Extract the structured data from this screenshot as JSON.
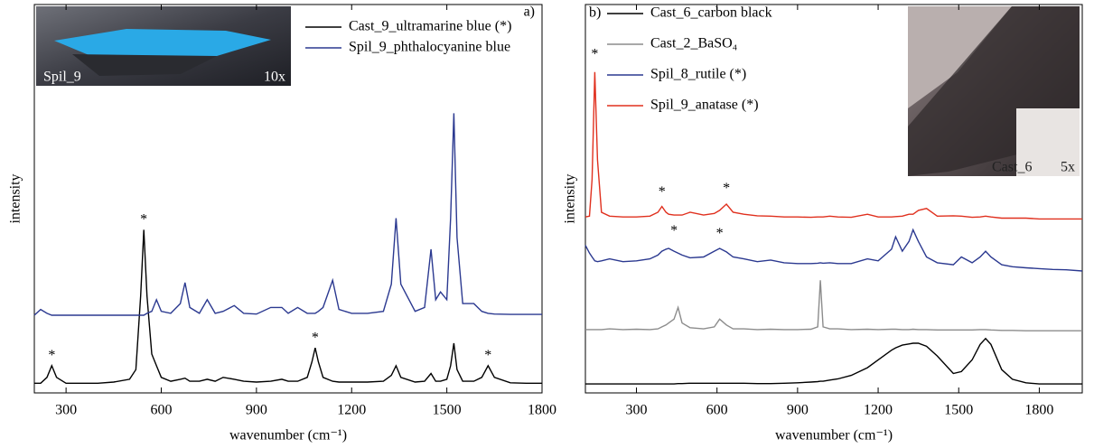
{
  "chart_data": [
    {
      "type": "line",
      "panel_label": "a)",
      "xlabel": "wavenumber (cm⁻¹)",
      "ylabel": "intensity",
      "inset_labels": [
        "Spil_9",
        "10x"
      ],
      "legend": "top-right",
      "xlim": [
        200,
        1800
      ],
      "xticks": [
        300,
        600,
        900,
        1200,
        1500,
        1800
      ],
      "ylim": [
        0,
        100
      ],
      "x": [
        200,
        220,
        240,
        255,
        270,
        300,
        350,
        400,
        450,
        500,
        520,
        535,
        545,
        555,
        570,
        585,
        600,
        630,
        660,
        675,
        690,
        720,
        745,
        770,
        795,
        830,
        860,
        900,
        945,
        980,
        1000,
        1030,
        1060,
        1075,
        1085,
        1095,
        1110,
        1140,
        1160,
        1200,
        1250,
        1300,
        1325,
        1340,
        1355,
        1400,
        1430,
        1450,
        1465,
        1480,
        1500,
        1512,
        1522,
        1532,
        1550,
        1585,
        1610,
        1630,
        1650,
        1700,
        1750,
        1800
      ],
      "series": [
        {
          "name": "Cast_9_ultramarine blue (*)",
          "color": "#000000",
          "values": [
            2.5,
            2.5,
            4,
            7,
            4,
            2.5,
            2.5,
            2.5,
            2.8,
            3.5,
            6,
            25,
            42,
            25,
            10,
            7,
            4,
            3,
            3.5,
            3.8,
            3,
            3,
            3.5,
            3,
            4,
            3.5,
            3,
            2.8,
            3,
            3.5,
            3,
            3,
            4,
            8,
            11.6,
            8,
            4,
            3,
            2.8,
            2.8,
            2.8,
            3,
            4.5,
            7,
            4,
            2.8,
            3,
            5,
            3,
            3,
            3.5,
            7,
            12.8,
            6,
            3,
            3,
            4,
            7,
            4,
            2.6,
            2.5,
            2.5
          ]
        },
        {
          "name": "Spil_9_phthalocyanine blue",
          "color": "#2b3990",
          "values": [
            20,
            21.5,
            20.5,
            20,
            20,
            20,
            20,
            20,
            20,
            20,
            20,
            20,
            20,
            20.5,
            21,
            24,
            21,
            20.5,
            23,
            28.4,
            22,
            20.5,
            24,
            20.5,
            21,
            22.5,
            20.5,
            20.3,
            22,
            22,
            20.5,
            22,
            20.5,
            20.5,
            20.5,
            21,
            22,
            29,
            21.5,
            20.5,
            20.5,
            21,
            28,
            45,
            28,
            21,
            22,
            37,
            24,
            26,
            24,
            45,
            72,
            40,
            23,
            23,
            21,
            20.5,
            20.3,
            20.2,
            20.2,
            20.2
          ]
        }
      ],
      "annotations": [
        {
          "text": "*",
          "x": 255,
          "y": 9.5
        },
        {
          "text": "*",
          "x": 545,
          "y": 44.5
        },
        {
          "text": "*",
          "x": 1085,
          "y": 14
        },
        {
          "text": "*",
          "x": 1630,
          "y": 9.5
        }
      ]
    },
    {
      "type": "line",
      "panel_label": "b)",
      "xlabel": "wavenumber (cm⁻¹)",
      "ylabel": "intensity",
      "inset_labels": [
        "Cast_6",
        "5x"
      ],
      "legend": "top-left",
      "xlim": [
        110,
        1960
      ],
      "xticks": [
        300,
        600,
        900,
        1200,
        1500,
        1800
      ],
      "ylim": [
        0,
        100
      ],
      "x": [
        110,
        125,
        135,
        145,
        155,
        170,
        200,
        250,
        300,
        350,
        380,
        395,
        410,
        420,
        440,
        455,
        470,
        500,
        550,
        590,
        610,
        635,
        660,
        700,
        750,
        800,
        850,
        900,
        950,
        975,
        985,
        995,
        1020,
        1050,
        1100,
        1160,
        1200,
        1250,
        1265,
        1290,
        1315,
        1330,
        1350,
        1380,
        1420,
        1480,
        1510,
        1550,
        1580,
        1600,
        1620,
        1660,
        1700,
        1750,
        1800,
        1850,
        1900,
        1960
      ],
      "series": [
        {
          "name": "Cast_6_carbon black",
          "color": "#000000",
          "values": [
            2.3,
            2.3,
            2.3,
            2.3,
            2.3,
            2.3,
            2.3,
            2.3,
            2.3,
            2.3,
            2.3,
            2.3,
            2.3,
            2.3,
            2.3,
            2.4,
            2.4,
            2.5,
            2.5,
            2.5,
            2.5,
            2.5,
            2.5,
            2.5,
            2.4,
            2.4,
            2.5,
            2.6,
            2.8,
            2.9,
            3,
            3,
            3.3,
            3.6,
            4.5,
            6.5,
            8.5,
            11,
            11.6,
            12.3,
            12.6,
            12.8,
            12.8,
            12,
            9.5,
            5,
            5.5,
            8.5,
            12.5,
            14,
            12.5,
            6,
            3.5,
            2.6,
            2.3,
            2.3,
            2.3,
            2.3
          ]
        },
        {
          "name": "Cast_2_BaSO₄",
          "color": "#8c8c8c",
          "values": [
            16.3,
            16.3,
            16.3,
            16.3,
            16.3,
            16.3,
            16.5,
            16.3,
            16.4,
            16.3,
            16.5,
            17,
            17.5,
            18,
            19,
            22,
            18,
            16.8,
            16.5,
            17,
            19,
            17.5,
            16.5,
            16.5,
            16.3,
            16.4,
            16.3,
            16.3,
            16.4,
            17,
            29,
            17,
            16.5,
            16.5,
            16.3,
            16.4,
            16.3,
            16.4,
            16.4,
            16.3,
            16.3,
            16.4,
            16.3,
            16.3,
            16.2,
            16.2,
            16.2,
            16.2,
            16.3,
            16.3,
            16.2,
            16.1,
            16.1,
            16,
            16,
            16,
            16,
            16
          ]
        },
        {
          "name": "Spil_8_rutile (*)",
          "color": "#2b3990",
          "values": [
            38,
            36,
            35,
            34,
            33.8,
            34,
            34.5,
            33.8,
            34,
            34.5,
            35.5,
            36.5,
            37,
            37.2,
            36.5,
            36,
            35.5,
            34.8,
            35,
            36.5,
            37.2,
            36.3,
            35,
            34.5,
            33.8,
            34.2,
            33.5,
            33.3,
            33.3,
            33.4,
            33.5,
            33.4,
            33.5,
            33.3,
            33.3,
            34.5,
            34,
            37,
            40.2,
            36.5,
            39,
            42,
            39,
            35,
            33.5,
            33,
            35,
            33.5,
            35,
            36.5,
            35,
            33,
            32.5,
            32.2,
            32,
            31.8,
            31.7,
            31.4
          ]
        },
        {
          "name": "Spil_9_anatase (*)",
          "color": "#e0301e",
          "values": [
            45.3,
            45.5,
            55,
            82.6,
            60,
            46.5,
            45.5,
            45.3,
            45.3,
            45.5,
            46.5,
            48,
            46.5,
            46,
            45.8,
            45.8,
            45.8,
            46.5,
            45.8,
            46.2,
            47,
            48.6,
            46.5,
            46,
            45.6,
            45.5,
            45.3,
            45.3,
            45.2,
            45.3,
            45.3,
            45.3,
            45.5,
            45.3,
            45.2,
            46,
            45.3,
            45.3,
            45.4,
            45.5,
            46,
            46,
            47,
            47.5,
            45.5,
            45.6,
            45.5,
            45.2,
            45.3,
            45.5,
            45.3,
            45,
            45,
            45,
            44.8,
            44.8,
            44.8,
            44.8
          ]
        }
      ],
      "annotations": [
        {
          "text": "*",
          "x": 145,
          "y": 87
        },
        {
          "text": "*",
          "x": 395,
          "y": 51.5
        },
        {
          "text": "*",
          "x": 635,
          "y": 52.5
        },
        {
          "text": "*",
          "x": 440,
          "y": 41.5
        },
        {
          "text": "*",
          "x": 610,
          "y": 40.8
        }
      ]
    }
  ]
}
